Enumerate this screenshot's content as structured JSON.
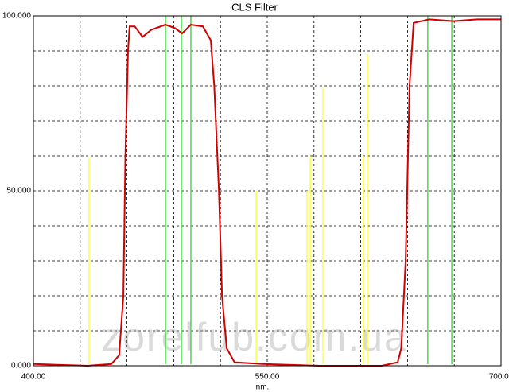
{
  "chart_data": {
    "type": "line",
    "title": "CLS Filter",
    "xlabel": "nm.",
    "watermark": "zorelfub.com.ua",
    "xlim": [
      400,
      700
    ],
    "ylim": [
      0,
      100
    ],
    "xticks": [
      {
        "value": 400,
        "label": "400.00"
      },
      {
        "value": 550,
        "label": "550.00"
      },
      {
        "value": 700,
        "label": "700.00"
      }
    ],
    "yticks": [
      {
        "value": 0,
        "label": "0.000"
      },
      {
        "value": 50,
        "label": "50.000"
      },
      {
        "value": 100,
        "label": "100.000"
      }
    ],
    "xgrid": [
      430,
      460,
      490,
      520,
      550,
      580,
      610,
      640,
      670
    ],
    "ygrid": [
      10,
      20,
      30,
      40,
      50,
      60,
      70,
      80,
      90
    ],
    "series": [
      {
        "color": "#d40000",
        "x": [
          400,
          434.7,
          450,
          455,
          457.7,
          459,
          460.7,
          461.7,
          465,
          470,
          475.5,
          484.7,
          490.8,
          495.4,
          501,
          508.7,
          513.8,
          516,
          519,
          521,
          524,
          529,
          547,
          582.7,
          623.5,
          633.7,
          636,
          638.8,
          641.3,
          643.9,
          654,
          669.4,
          684.7,
          700
        ],
        "values": [
          0.5,
          0,
          0.5,
          3,
          20,
          60,
          90,
          97,
          97,
          94,
          96,
          97.5,
          96.5,
          95,
          97.5,
          97,
          93,
          80,
          50,
          20,
          5,
          1,
          0.5,
          0,
          0,
          1,
          5,
          30,
          80,
          98,
          99,
          98.5,
          99,
          99
        ]
      }
    ],
    "markers": [
      {
        "x": 435.7,
        "y": 59.5,
        "color": "#ffff40"
      },
      {
        "x": 542.9,
        "y": 50,
        "color": "#ffff40"
      },
      {
        "x": 575.5,
        "y": 50,
        "color": "#ffff40"
      },
      {
        "x": 577.6,
        "y": 60,
        "color": "#ffff40"
      },
      {
        "x": 585.7,
        "y": 79.5,
        "color": "#ffff40"
      },
      {
        "x": 611.7,
        "y": 60,
        "color": "#ffff40"
      },
      {
        "x": 614.3,
        "y": 89,
        "color": "#ffff40"
      },
      {
        "x": 484.7,
        "y": 100,
        "color": "#40e040"
      },
      {
        "x": 494.9,
        "y": 100,
        "color": "#40e040"
      },
      {
        "x": 501,
        "y": 100,
        "color": "#40e040"
      },
      {
        "x": 653,
        "y": 100,
        "color": "#40e040"
      },
      {
        "x": 668.4,
        "y": 100,
        "color": "#40e040"
      }
    ]
  }
}
